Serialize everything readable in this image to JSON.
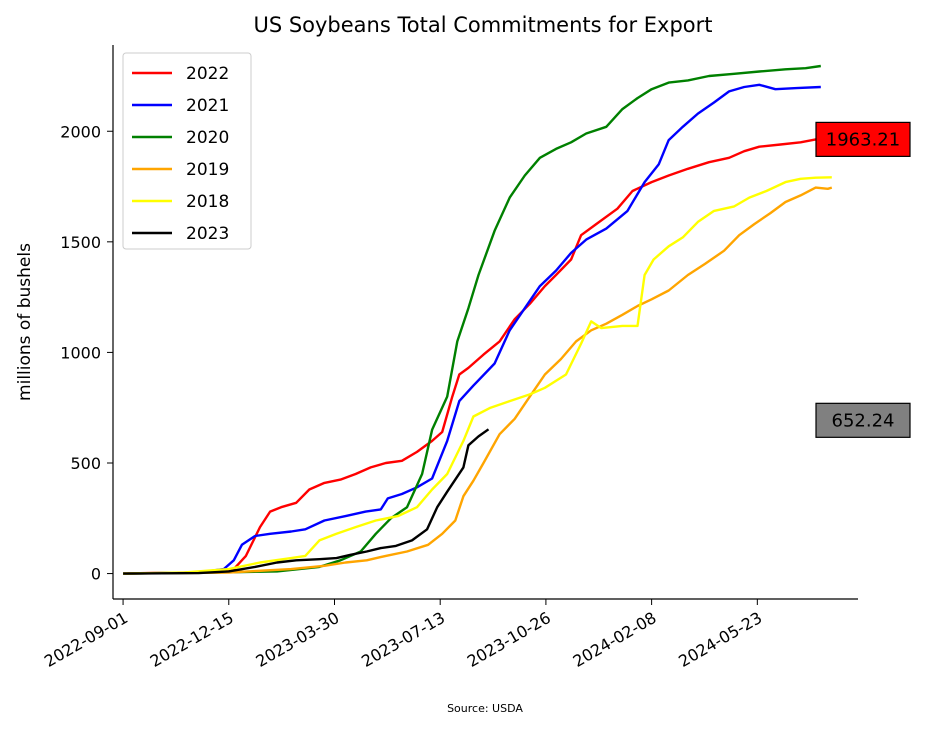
{
  "chart_data": {
    "type": "line",
    "title": "US Soybeans Total Commitments for Export",
    "xlabel": "",
    "ylabel": "millions of bushels",
    "source": "Source: USDA",
    "x_ticks": [
      "2022-09-01",
      "2022-12-15",
      "2023-03-30",
      "2023-07-13",
      "2023-10-26",
      "2024-02-08",
      "2024-05-23"
    ],
    "x_range": [
      "2022-08-22",
      "2024-08-31"
    ],
    "yticks": [
      0,
      500,
      1000,
      1500,
      2000
    ],
    "ylim": [
      -115,
      2390
    ],
    "grid": false,
    "legend_position": "top-left",
    "series": [
      {
        "name": "2022",
        "color": "#ff0000",
        "points": [
          [
            "2022-09-01",
            0
          ],
          [
            "2022-10-01",
            3
          ],
          [
            "2022-11-15",
            5
          ],
          [
            "2022-12-20",
            20
          ],
          [
            "2023-01-01",
            80
          ],
          [
            "2023-01-15",
            210
          ],
          [
            "2023-01-25",
            280
          ],
          [
            "2023-02-05",
            300
          ],
          [
            "2023-02-20",
            320
          ],
          [
            "2023-03-05",
            380
          ],
          [
            "2023-03-20",
            410
          ],
          [
            "2023-04-05",
            425
          ],
          [
            "2023-04-20",
            450
          ],
          [
            "2023-05-05",
            480
          ],
          [
            "2023-05-20",
            500
          ],
          [
            "2023-06-05",
            510
          ],
          [
            "2023-06-20",
            550
          ],
          [
            "2023-07-05",
            600
          ],
          [
            "2023-07-15",
            640
          ],
          [
            "2023-07-25",
            800
          ],
          [
            "2023-08-01",
            900
          ],
          [
            "2023-08-10",
            930
          ],
          [
            "2023-08-25",
            990
          ],
          [
            "2023-09-10",
            1050
          ],
          [
            "2023-09-25",
            1150
          ],
          [
            "2023-10-10",
            1220
          ],
          [
            "2023-10-25",
            1300
          ],
          [
            "2023-11-05",
            1350
          ],
          [
            "2023-11-20",
            1420
          ],
          [
            "2023-11-30",
            1530
          ],
          [
            "2023-12-15",
            1580
          ],
          [
            "2024-01-05",
            1650
          ],
          [
            "2024-01-20",
            1730
          ],
          [
            "2024-02-08",
            1770
          ],
          [
            "2024-02-25",
            1800
          ],
          [
            "2024-03-15",
            1830
          ],
          [
            "2024-04-05",
            1860
          ],
          [
            "2024-04-25",
            1880
          ],
          [
            "2024-05-10",
            1910
          ],
          [
            "2024-05-25",
            1930
          ],
          [
            "2024-06-15",
            1940
          ],
          [
            "2024-07-05",
            1950
          ],
          [
            "2024-07-20",
            1963.21
          ]
        ]
      },
      {
        "name": "2021",
        "color": "#0000ff",
        "points": [
          [
            "2022-09-01",
            0
          ],
          [
            "2022-11-15",
            5
          ],
          [
            "2022-12-10",
            20
          ],
          [
            "2022-12-20",
            60
          ],
          [
            "2022-12-28",
            130
          ],
          [
            "2023-01-10",
            170
          ],
          [
            "2023-01-25",
            180
          ],
          [
            "2023-02-15",
            190
          ],
          [
            "2023-03-01",
            200
          ],
          [
            "2023-03-20",
            240
          ],
          [
            "2023-04-10",
            260
          ],
          [
            "2023-04-30",
            280
          ],
          [
            "2023-05-15",
            290
          ],
          [
            "2023-05-22",
            340
          ],
          [
            "2023-06-05",
            360
          ],
          [
            "2023-06-20",
            390
          ],
          [
            "2023-07-05",
            430
          ],
          [
            "2023-07-20",
            600
          ],
          [
            "2023-08-01",
            780
          ],
          [
            "2023-08-15",
            850
          ],
          [
            "2023-09-05",
            950
          ],
          [
            "2023-09-20",
            1100
          ],
          [
            "2023-10-05",
            1200
          ],
          [
            "2023-10-20",
            1300
          ],
          [
            "2023-11-05",
            1370
          ],
          [
            "2023-11-20",
            1450
          ],
          [
            "2023-12-05",
            1510
          ],
          [
            "2023-12-25",
            1560
          ],
          [
            "2024-01-15",
            1640
          ],
          [
            "2024-02-01",
            1770
          ],
          [
            "2024-02-15",
            1850
          ],
          [
            "2024-02-25",
            1960
          ],
          [
            "2024-03-10",
            2020
          ],
          [
            "2024-03-25",
            2080
          ],
          [
            "2024-04-10",
            2130
          ],
          [
            "2024-04-25",
            2180
          ],
          [
            "2024-05-10",
            2200
          ],
          [
            "2024-05-25",
            2210
          ],
          [
            "2024-06-10",
            2190
          ],
          [
            "2024-07-01",
            2195
          ],
          [
            "2024-07-25",
            2200
          ]
        ]
      },
      {
        "name": "2020",
        "color": "#008000",
        "points": [
          [
            "2022-09-01",
            0
          ],
          [
            "2022-12-01",
            5
          ],
          [
            "2023-02-01",
            10
          ],
          [
            "2023-03-15",
            30
          ],
          [
            "2023-04-05",
            60
          ],
          [
            "2023-04-25",
            100
          ],
          [
            "2023-05-10",
            180
          ],
          [
            "2023-05-25",
            250
          ],
          [
            "2023-06-10",
            300
          ],
          [
            "2023-06-25",
            450
          ],
          [
            "2023-07-05",
            650
          ],
          [
            "2023-07-20",
            800
          ],
          [
            "2023-07-30",
            1050
          ],
          [
            "2023-08-10",
            1200
          ],
          [
            "2023-08-20",
            1350
          ],
          [
            "2023-09-05",
            1550
          ],
          [
            "2023-09-20",
            1700
          ],
          [
            "2023-10-05",
            1800
          ],
          [
            "2023-10-20",
            1880
          ],
          [
            "2023-11-05",
            1920
          ],
          [
            "2023-11-20",
            1950
          ],
          [
            "2023-12-05",
            1990
          ],
          [
            "2023-12-25",
            2020
          ],
          [
            "2024-01-10",
            2100
          ],
          [
            "2024-01-25",
            2150
          ],
          [
            "2024-02-08",
            2190
          ],
          [
            "2024-02-25",
            2220
          ],
          [
            "2024-03-15",
            2230
          ],
          [
            "2024-04-05",
            2250
          ],
          [
            "2024-04-30",
            2260
          ],
          [
            "2024-05-25",
            2270
          ],
          [
            "2024-06-20",
            2280
          ],
          [
            "2024-07-10",
            2285
          ],
          [
            "2024-07-25",
            2295
          ]
        ]
      },
      {
        "name": "2019",
        "color": "#ffa500",
        "points": [
          [
            "2022-09-01",
            0
          ],
          [
            "2022-12-15",
            5
          ],
          [
            "2023-02-15",
            20
          ],
          [
            "2023-03-20",
            35
          ],
          [
            "2023-04-10",
            50
          ],
          [
            "2023-05-01",
            60
          ],
          [
            "2023-05-20",
            80
          ],
          [
            "2023-06-10",
            100
          ],
          [
            "2023-07-01",
            130
          ],
          [
            "2023-07-15",
            180
          ],
          [
            "2023-07-28",
            240
          ],
          [
            "2023-08-05",
            350
          ],
          [
            "2023-08-15",
            420
          ],
          [
            "2023-08-25",
            500
          ],
          [
            "2023-09-10",
            630
          ],
          [
            "2023-09-25",
            700
          ],
          [
            "2023-10-10",
            800
          ],
          [
            "2023-10-25",
            900
          ],
          [
            "2023-11-10",
            970
          ],
          [
            "2023-11-25",
            1050
          ],
          [
            "2023-12-10",
            1100
          ],
          [
            "2023-12-25",
            1130
          ],
          [
            "2024-01-10",
            1170
          ],
          [
            "2024-01-25",
            1210
          ],
          [
            "2024-02-08",
            1240
          ],
          [
            "2024-02-25",
            1280
          ],
          [
            "2024-03-15",
            1350
          ],
          [
            "2024-04-01",
            1400
          ],
          [
            "2024-04-20",
            1460
          ],
          [
            "2024-05-05",
            1530
          ],
          [
            "2024-05-20",
            1580
          ],
          [
            "2024-06-05",
            1630
          ],
          [
            "2024-06-20",
            1680
          ],
          [
            "2024-07-05",
            1710
          ],
          [
            "2024-07-20",
            1745
          ],
          [
            "2024-08-01",
            1740
          ],
          [
            "2024-08-05",
            1745
          ]
        ]
      },
      {
        "name": "2018",
        "color": "#ffff00",
        "points": [
          [
            "2022-09-01",
            0
          ],
          [
            "2022-11-01",
            5
          ],
          [
            "2022-12-15",
            20
          ],
          [
            "2023-01-15",
            50
          ],
          [
            "2023-02-15",
            70
          ],
          [
            "2023-03-01",
            80
          ],
          [
            "2023-03-15",
            150
          ],
          [
            "2023-04-01",
            180
          ],
          [
            "2023-04-20",
            210
          ],
          [
            "2023-05-10",
            240
          ],
          [
            "2023-06-01",
            260
          ],
          [
            "2023-06-20",
            300
          ],
          [
            "2023-07-05",
            380
          ],
          [
            "2023-07-20",
            450
          ],
          [
            "2023-08-05",
            600
          ],
          [
            "2023-08-15",
            710
          ],
          [
            "2023-09-01",
            750
          ],
          [
            "2023-09-20",
            780
          ],
          [
            "2023-10-10",
            810
          ],
          [
            "2023-10-25",
            840
          ],
          [
            "2023-11-15",
            900
          ],
          [
            "2023-11-30",
            1040
          ],
          [
            "2023-12-10",
            1140
          ],
          [
            "2023-12-20",
            1110
          ],
          [
            "2024-01-10",
            1120
          ],
          [
            "2024-01-25",
            1120
          ],
          [
            "2024-02-01",
            1350
          ],
          [
            "2024-02-10",
            1420
          ],
          [
            "2024-02-25",
            1480
          ],
          [
            "2024-03-10",
            1520
          ],
          [
            "2024-03-25",
            1590
          ],
          [
            "2024-04-10",
            1640
          ],
          [
            "2024-04-30",
            1660
          ],
          [
            "2024-05-15",
            1700
          ],
          [
            "2024-06-01",
            1730
          ],
          [
            "2024-06-20",
            1770
          ],
          [
            "2024-07-05",
            1785
          ],
          [
            "2024-07-20",
            1790
          ],
          [
            "2024-08-05",
            1792
          ]
        ]
      },
      {
        "name": "2023",
        "color": "#000000",
        "points": [
          [
            "2022-09-01",
            0
          ],
          [
            "2022-11-15",
            2
          ],
          [
            "2022-12-15",
            10
          ],
          [
            "2023-01-10",
            30
          ],
          [
            "2023-02-01",
            50
          ],
          [
            "2023-02-20",
            60
          ],
          [
            "2023-03-15",
            65
          ],
          [
            "2023-04-01",
            70
          ],
          [
            "2023-04-15",
            85
          ],
          [
            "2023-05-01",
            100
          ],
          [
            "2023-05-15",
            115
          ],
          [
            "2023-05-30",
            125
          ],
          [
            "2023-06-15",
            150
          ],
          [
            "2023-06-30",
            200
          ],
          [
            "2023-07-10",
            300
          ],
          [
            "2023-07-20",
            370
          ],
          [
            "2023-08-05",
            480
          ],
          [
            "2023-08-10",
            580
          ],
          [
            "2023-08-20",
            620
          ],
          [
            "2023-08-30",
            652.24
          ]
        ]
      }
    ],
    "annotations": [
      {
        "text": "1963.21",
        "value": 1963.21,
        "background": "#ff0000"
      },
      {
        "text": "652.24",
        "value": 652.24,
        "background": "#808080"
      }
    ]
  }
}
